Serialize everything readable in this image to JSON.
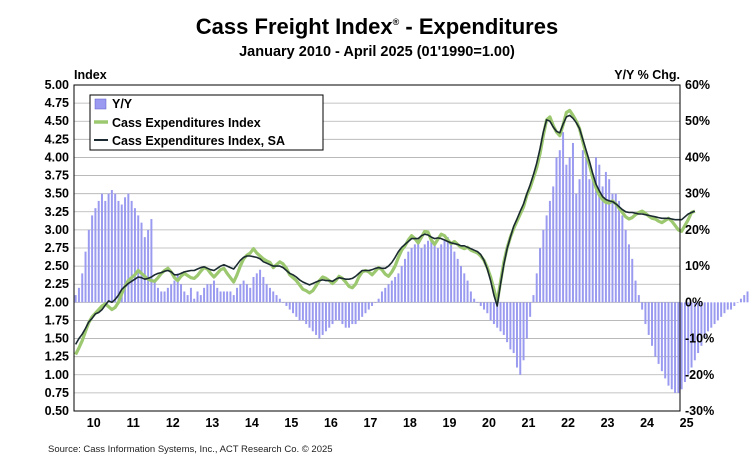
{
  "chart_data": {
    "type": "bar+line",
    "title": "Cass Freight Index",
    "title_mark": "®",
    "title_suffix": " - Expenditures",
    "subtitle": "January 2010 - April 2025 (01'1990=1.00)",
    "left_axis_label": "Index",
    "right_axis_label": "Y/Y % Chg.",
    "left_ylim": [
      0.5,
      5.0
    ],
    "left_ticks": [
      "5.00",
      "4.75",
      "4.50",
      "4.25",
      "4.00",
      "3.75",
      "3.50",
      "3.25",
      "3.00",
      "2.75",
      "2.50",
      "2.25",
      "2.00",
      "1.75",
      "1.50",
      "1.25",
      "1.00",
      "0.75",
      "0.50"
    ],
    "right_ylim": [
      -30,
      60
    ],
    "right_ticks": [
      "60%",
      "50%",
      "40%",
      "30%",
      "20%",
      "10%",
      "0%",
      "-10%",
      "-20%",
      "-30%"
    ],
    "x_tick_labels": [
      "10",
      "11",
      "12",
      "13",
      "14",
      "15",
      "16",
      "17",
      "18",
      "19",
      "20",
      "21",
      "22",
      "23",
      "24",
      "25"
    ],
    "x_start": "2010-01",
    "grid": true,
    "legend_position": "top-left",
    "series": [
      {
        "name": "Y/Y",
        "type": "bar",
        "axis": "right",
        "color": "#9a9af0",
        "values": [
          2,
          4,
          8,
          14,
          20,
          24,
          26,
          28,
          30,
          28,
          30,
          31,
          30,
          28,
          27,
          29,
          30,
          28,
          26,
          24,
          22,
          18,
          20,
          23,
          6,
          4,
          3,
          3,
          4,
          5,
          6,
          8,
          5,
          3,
          2,
          4,
          1,
          3,
          2,
          4,
          5,
          5,
          6,
          4,
          3,
          3,
          3,
          3,
          2,
          4,
          5,
          6,
          5,
          4,
          7,
          8,
          9,
          7,
          5,
          4,
          3,
          2,
          1,
          0,
          -1,
          -2,
          -3,
          -4,
          -5,
          -5,
          -6,
          -7,
          -8,
          -9,
          -10,
          -9,
          -8,
          -7,
          -6,
          -5,
          -5,
          -6,
          -7,
          -7,
          -6,
          -6,
          -5,
          -4,
          -3,
          -2,
          -1,
          0,
          1,
          3,
          4,
          5,
          6,
          7,
          8,
          10,
          12,
          14,
          15,
          16,
          17,
          15,
          16,
          17,
          18,
          16,
          15,
          16,
          17,
          18,
          16,
          14,
          12,
          10,
          8,
          6,
          3,
          1,
          0,
          -1,
          -2,
          -3,
          -5,
          -6,
          -7,
          -8,
          -9,
          -11,
          -13,
          -14,
          -18,
          -20,
          -16,
          -10,
          -4,
          2,
          8,
          15,
          20,
          24,
          28,
          32,
          40,
          42,
          47,
          38,
          40,
          44,
          30,
          34,
          42,
          40,
          34,
          35,
          40,
          38,
          32,
          36,
          34,
          30,
          30,
          28,
          24,
          20,
          16,
          12,
          6,
          2,
          -2,
          -6,
          -9,
          -12,
          -15,
          -17,
          -19,
          -21,
          -23,
          -24,
          -25,
          -25,
          -24,
          -22,
          -20,
          -18,
          -16,
          -14,
          -12,
          -10,
          -8,
          -7,
          -6,
          -5,
          -4,
          -3,
          -2,
          -2,
          -1,
          0,
          1,
          2,
          3
        ]
      },
      {
        "name": "Cass Expenditures Index",
        "type": "line",
        "axis": "left",
        "color": "#9cc870",
        "values": [
          1.28,
          1.37,
          1.47,
          1.6,
          1.72,
          1.8,
          1.85,
          1.9,
          1.95,
          1.98,
          1.94,
          1.9,
          1.93,
          2.0,
          2.12,
          2.22,
          2.3,
          2.34,
          2.38,
          2.44,
          2.4,
          2.36,
          2.32,
          2.3,
          2.29,
          2.34,
          2.4,
          2.44,
          2.47,
          2.42,
          2.34,
          2.3,
          2.36,
          2.4,
          2.37,
          2.34,
          2.33,
          2.37,
          2.43,
          2.48,
          2.46,
          2.4,
          2.35,
          2.4,
          2.45,
          2.47,
          2.4,
          2.34,
          2.28,
          2.38,
          2.5,
          2.6,
          2.65,
          2.68,
          2.74,
          2.68,
          2.64,
          2.6,
          2.57,
          2.55,
          2.48,
          2.52,
          2.56,
          2.53,
          2.47,
          2.38,
          2.34,
          2.3,
          2.24,
          2.18,
          2.16,
          2.13,
          2.16,
          2.23,
          2.3,
          2.35,
          2.33,
          2.3,
          2.26,
          2.3,
          2.36,
          2.33,
          2.28,
          2.22,
          2.2,
          2.25,
          2.35,
          2.42,
          2.44,
          2.42,
          2.38,
          2.43,
          2.48,
          2.45,
          2.39,
          2.36,
          2.42,
          2.5,
          2.62,
          2.72,
          2.78,
          2.86,
          2.92,
          2.88,
          2.82,
          2.9,
          2.98,
          2.97,
          2.86,
          2.8,
          2.87,
          2.94,
          2.92,
          2.86,
          2.81,
          2.84,
          2.8,
          2.76,
          2.74,
          2.76,
          2.72,
          2.7,
          2.68,
          2.64,
          2.58,
          2.48,
          2.35,
          2.18,
          2.0,
          2.28,
          2.55,
          2.75,
          2.9,
          3.02,
          3.12,
          3.22,
          3.32,
          3.48,
          3.58,
          3.72,
          3.86,
          4.05,
          4.3,
          4.52,
          4.56,
          4.44,
          4.35,
          4.3,
          4.45,
          4.62,
          4.65,
          4.58,
          4.5,
          4.4,
          4.22,
          4.05,
          3.9,
          3.72,
          3.58,
          3.48,
          3.42,
          3.38,
          3.37,
          3.4,
          3.36,
          3.3,
          3.24,
          3.18,
          3.15,
          3.17,
          3.21,
          3.24,
          3.26,
          3.23,
          3.19,
          3.16,
          3.15,
          3.12,
          3.1,
          3.13,
          3.16,
          3.12,
          3.06,
          3.0,
          2.98,
          3.06,
          3.14,
          3.24,
          3.26
        ]
      },
      {
        "name": "Cass Expenditures Index, SA",
        "type": "line",
        "axis": "left",
        "color": "#1a2a30",
        "values": [
          1.42,
          1.5,
          1.56,
          1.64,
          1.73,
          1.78,
          1.84,
          1.86,
          1.9,
          1.96,
          2.02,
          2.0,
          2.04,
          2.1,
          2.18,
          2.22,
          2.26,
          2.29,
          2.32,
          2.35,
          2.34,
          2.32,
          2.33,
          2.35,
          2.38,
          2.4,
          2.41,
          2.43,
          2.44,
          2.42,
          2.38,
          2.38,
          2.4,
          2.42,
          2.43,
          2.44,
          2.44,
          2.46,
          2.48,
          2.49,
          2.47,
          2.45,
          2.44,
          2.47,
          2.5,
          2.52,
          2.5,
          2.48,
          2.46,
          2.52,
          2.58,
          2.62,
          2.64,
          2.64,
          2.63,
          2.62,
          2.6,
          2.56,
          2.54,
          2.52,
          2.5,
          2.5,
          2.5,
          2.48,
          2.44,
          2.4,
          2.38,
          2.35,
          2.31,
          2.28,
          2.26,
          2.24,
          2.26,
          2.28,
          2.3,
          2.31,
          2.3,
          2.3,
          2.29,
          2.32,
          2.34,
          2.33,
          2.32,
          2.32,
          2.33,
          2.36,
          2.4,
          2.44,
          2.44,
          2.44,
          2.45,
          2.47,
          2.48,
          2.47,
          2.47,
          2.5,
          2.55,
          2.62,
          2.7,
          2.76,
          2.8,
          2.84,
          2.88,
          2.88,
          2.88,
          2.92,
          2.94,
          2.93,
          2.9,
          2.88,
          2.89,
          2.88,
          2.86,
          2.84,
          2.82,
          2.81,
          2.8,
          2.78,
          2.78,
          2.76,
          2.74,
          2.72,
          2.7,
          2.66,
          2.58,
          2.46,
          2.3,
          2.1,
          1.95,
          2.25,
          2.52,
          2.74,
          2.9,
          3.05,
          3.15,
          3.26,
          3.36,
          3.5,
          3.62,
          3.76,
          3.92,
          4.12,
          4.35,
          4.52,
          4.5,
          4.42,
          4.36,
          4.34,
          4.46,
          4.56,
          4.58,
          4.54,
          4.48,
          4.4,
          4.25,
          4.1,
          3.95,
          3.78,
          3.63,
          3.54,
          3.46,
          3.42,
          3.4,
          3.39,
          3.36,
          3.32,
          3.28,
          3.25,
          3.24,
          3.24,
          3.23,
          3.22,
          3.22,
          3.21,
          3.2,
          3.19,
          3.18,
          3.17,
          3.16,
          3.16,
          3.16,
          3.15,
          3.14,
          3.14,
          3.14,
          3.18,
          3.22,
          3.24,
          3.26
        ]
      }
    ]
  },
  "source": "Source: Cass Information Systems, Inc., ACT Research Co. © 2025",
  "colors": {
    "yy_bar": "#9a9af0",
    "nsa_line": "#9cc870",
    "sa_line": "#1a2a30",
    "grid": "#b0b0b0"
  }
}
